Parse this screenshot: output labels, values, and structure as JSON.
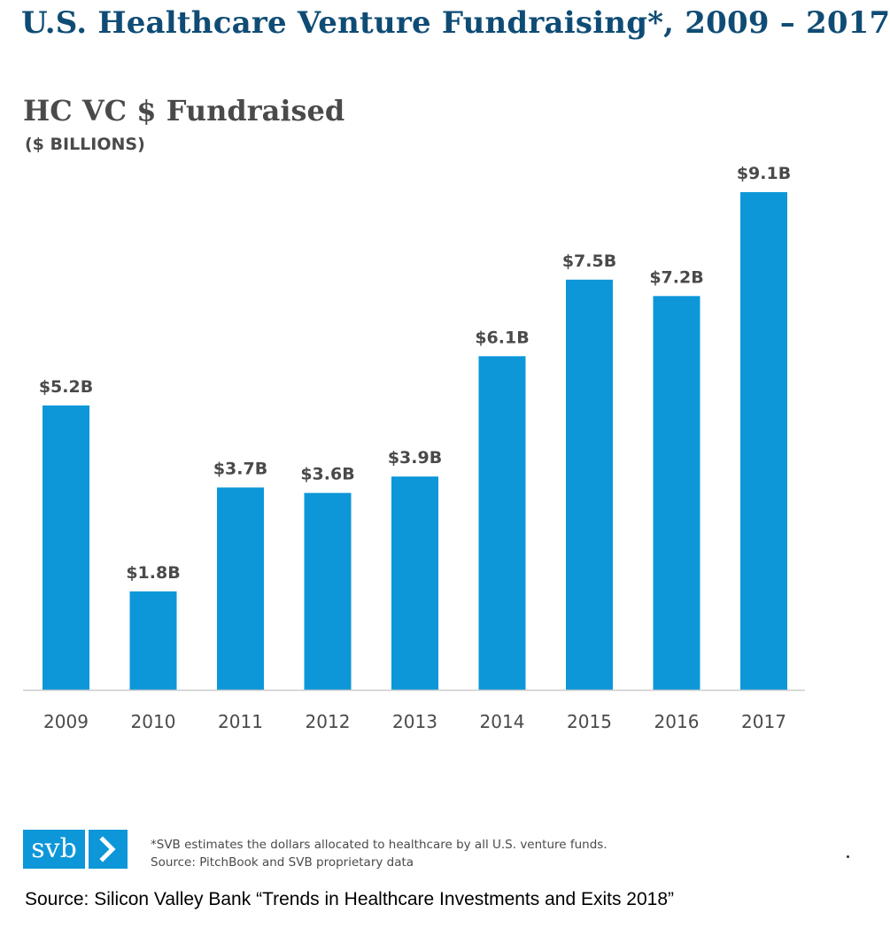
{
  "header": {
    "title": "U.S. Healthcare Venture Fundraising*, 2009 – 2017"
  },
  "chart_data": {
    "type": "bar",
    "title": "HC VC $ Fundraised",
    "subtitle": "($ BILLIONS)",
    "categories": [
      "2009",
      "2010",
      "2011",
      "2012",
      "2013",
      "2014",
      "2015",
      "2016",
      "2017"
    ],
    "values": [
      5.2,
      1.8,
      3.7,
      3.6,
      3.9,
      6.1,
      7.5,
      7.2,
      9.1
    ],
    "data_labels": [
      "$5.2B",
      "$1.8B",
      "$3.7B",
      "$3.6B",
      "$3.9B",
      "$6.1B",
      "$7.5B",
      "$7.2B",
      "$9.1B"
    ],
    "xlabel": "",
    "ylabel": "",
    "ylim": [
      0,
      9.1
    ],
    "grid": false,
    "legend": "none",
    "colors": {
      "bar": "#0d97d9",
      "axis": "#cccccc",
      "label": "#4a4a4a"
    }
  },
  "footer": {
    "logo_text": "svb",
    "logo_icon": "chevron-right-icon",
    "footnote_line1": "*SVB estimates the dollars allocated to healthcare by all U.S. venture funds.",
    "footnote_line2": "Source: PitchBook and SVB proprietary data",
    "source": "Source: Silicon Valley Bank “Trends in Healthcare Investments and Exits 2018”"
  }
}
